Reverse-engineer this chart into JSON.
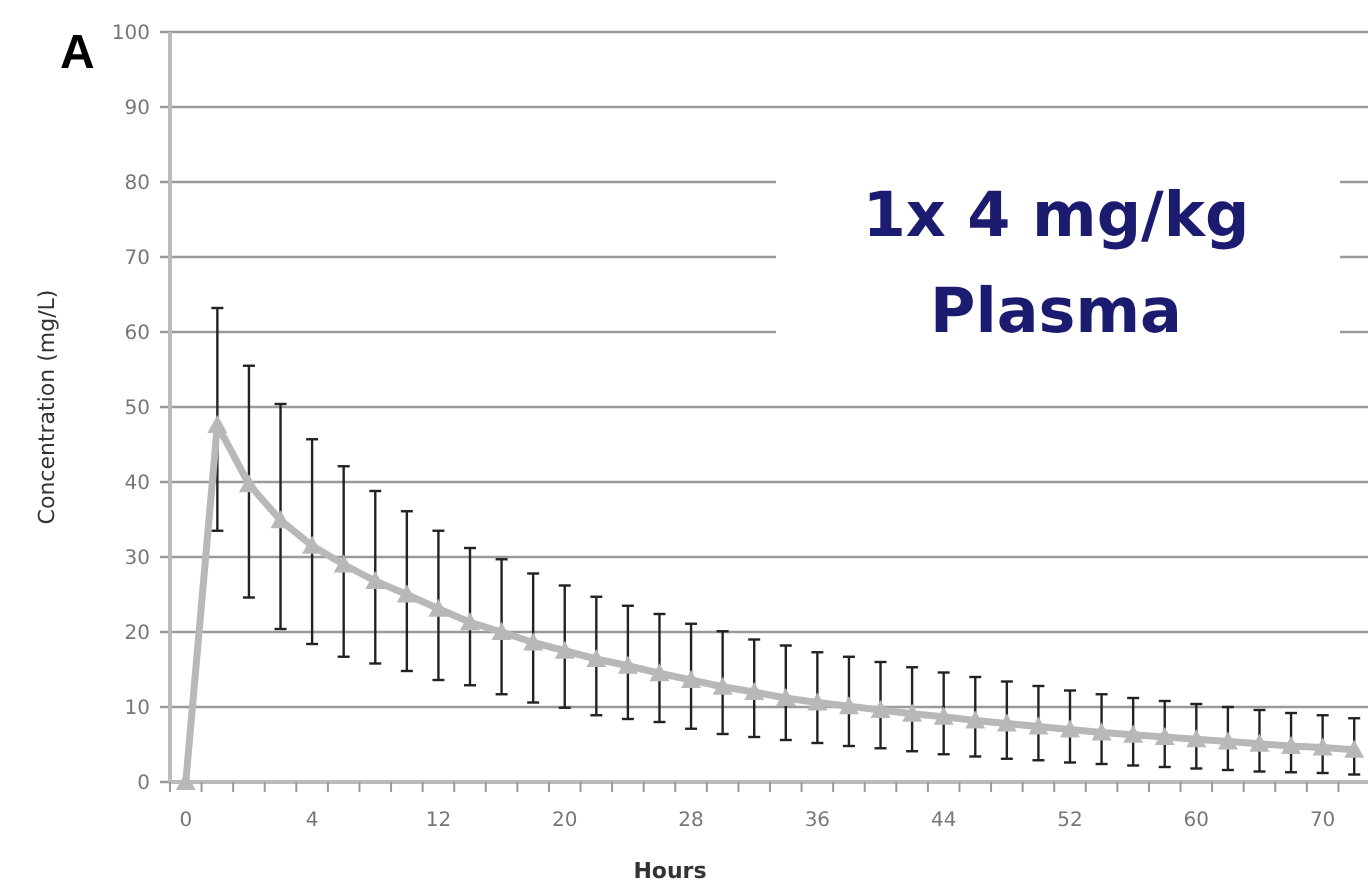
{
  "chart_data": {
    "type": "line",
    "title": "A",
    "xlabel": "Hours",
    "ylabel": "Concentration (mg/L)",
    "annotations": [
      "1x 4 mg/kg",
      "Plasma"
    ],
    "categories": [
      "0",
      null,
      null,
      null,
      "4",
      null,
      null,
      null,
      "12",
      null,
      null,
      null,
      "20",
      null,
      null,
      null,
      "28",
      null,
      null,
      null,
      "36",
      null,
      null,
      null,
      "44",
      null,
      null,
      null,
      "52",
      null,
      null,
      null,
      "60",
      null,
      null,
      null,
      "70",
      null
    ],
    "series": [
      {
        "color": "#b8b8b8",
        "values": [
          0,
          47.6,
          39.7,
          34.9,
          31.5,
          29,
          26.8,
          25,
          23.1,
          21.3,
          20,
          18.6,
          17.5,
          16.4,
          15.5,
          14.5,
          13.6,
          12.7,
          12,
          11.2,
          10.6,
          10.1,
          9.6,
          9.1,
          8.7,
          8.2,
          7.8,
          7.4,
          7,
          6.6,
          6.3,
          6,
          5.7,
          5.4,
          5.1,
          4.8,
          4.6,
          4.3
        ],
        "errors": [
          null,
          [
            33.5,
            63.2
          ],
          [
            24.6,
            55.5
          ],
          [
            20.4,
            50.4
          ],
          [
            18.4,
            45.7
          ],
          [
            16.7,
            42.1
          ],
          [
            15.8,
            38.8
          ],
          [
            14.8,
            36.1
          ],
          [
            13.6,
            33.5
          ],
          [
            12.9,
            31.2
          ],
          [
            11.7,
            29.7
          ],
          [
            10.6,
            27.8
          ],
          [
            9.9,
            26.2
          ],
          [
            8.9,
            24.7
          ],
          [
            8.4,
            23.5
          ],
          [
            8,
            22.4
          ],
          [
            7.1,
            21.1
          ],
          [
            6.4,
            20.1
          ],
          [
            6,
            19
          ],
          [
            5.6,
            18.2
          ],
          [
            5.2,
            17.3
          ],
          [
            4.8,
            16.7
          ],
          [
            4.5,
            16
          ],
          [
            4.1,
            15.3
          ],
          [
            3.7,
            14.6
          ],
          [
            3.4,
            14
          ],
          [
            3.1,
            13.4
          ],
          [
            2.9,
            12.8
          ],
          [
            2.6,
            12.2
          ],
          [
            2.4,
            11.7
          ],
          [
            2.2,
            11.2
          ],
          [
            2,
            10.8
          ],
          [
            1.8,
            10.4
          ],
          [
            1.6,
            10
          ],
          [
            1.4,
            9.6
          ],
          [
            1.3,
            9.2
          ],
          [
            1.2,
            8.9
          ],
          [
            1,
            8.5
          ]
        ]
      }
    ],
    "ylim": [
      0,
      100
    ],
    "yticks": [
      0,
      10,
      20,
      30,
      40,
      50,
      60,
      70,
      80,
      90,
      100
    ],
    "grid": "y",
    "marker": "triangle",
    "line_style": "solid"
  }
}
